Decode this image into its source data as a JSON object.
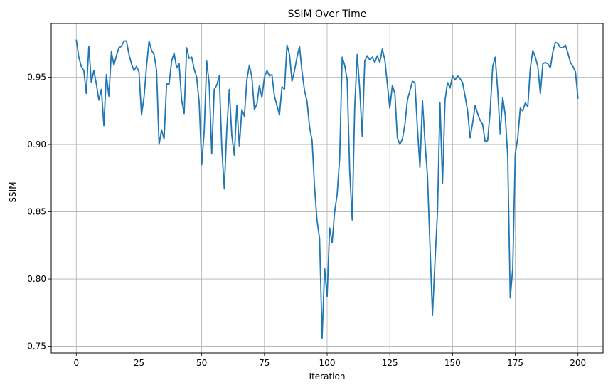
{
  "chart_data": {
    "type": "line",
    "title": "SSIM Over Time",
    "xlabel": "Iteration",
    "ylabel": "SSIM",
    "xlim": [
      -10,
      210
    ],
    "ylim": [
      0.745,
      0.99
    ],
    "grid": true,
    "x_ticks": [
      0,
      25,
      50,
      75,
      100,
      125,
      150,
      175,
      200
    ],
    "y_ticks": [
      0.75,
      0.8,
      0.85,
      0.9,
      0.95
    ],
    "x_tick_labels": [
      "0",
      "25",
      "50",
      "75",
      "100",
      "125",
      "150",
      "175",
      "200"
    ],
    "y_tick_labels": [
      "0.75",
      "0.80",
      "0.85",
      "0.90",
      "0.95"
    ],
    "series": [
      {
        "color": "#1f77b4",
        "x_start": 0,
        "x_step": 1,
        "values": [
          0.978,
          0.965,
          0.958,
          0.955,
          0.938,
          0.973,
          0.946,
          0.955,
          0.945,
          0.933,
          0.941,
          0.914,
          0.952,
          0.936,
          0.969,
          0.959,
          0.966,
          0.972,
          0.973,
          0.977,
          0.977,
          0.967,
          0.96,
          0.955,
          0.958,
          0.954,
          0.922,
          0.935,
          0.958,
          0.977,
          0.97,
          0.967,
          0.955,
          0.9,
          0.911,
          0.904,
          0.945,
          0.945,
          0.962,
          0.968,
          0.957,
          0.96,
          0.933,
          0.923,
          0.972,
          0.964,
          0.965,
          0.956,
          0.95,
          0.931,
          0.885,
          0.91,
          0.962,
          0.945,
          0.893,
          0.941,
          0.944,
          0.951,
          0.898,
          0.867,
          0.911,
          0.941,
          0.907,
          0.892,
          0.929,
          0.899,
          0.926,
          0.921,
          0.948,
          0.959,
          0.95,
          0.926,
          0.93,
          0.944,
          0.935,
          0.95,
          0.955,
          0.951,
          0.952,
          0.936,
          0.929,
          0.922,
          0.943,
          0.941,
          0.974,
          0.967,
          0.947,
          0.955,
          0.965,
          0.973,
          0.954,
          0.94,
          0.932,
          0.913,
          0.903,
          0.868,
          0.843,
          0.83,
          0.756,
          0.808,
          0.787,
          0.838,
          0.827,
          0.85,
          0.863,
          0.89,
          0.965,
          0.959,
          0.948,
          0.88,
          0.844,
          0.928,
          0.967,
          0.941,
          0.906,
          0.962,
          0.966,
          0.963,
          0.965,
          0.961,
          0.966,
          0.961,
          0.971,
          0.963,
          0.945,
          0.927,
          0.944,
          0.938,
          0.905,
          0.9,
          0.904,
          0.915,
          0.933,
          0.94,
          0.947,
          0.946,
          0.912,
          0.883,
          0.933,
          0.902,
          0.877,
          0.825,
          0.773,
          0.813,
          0.85,
          0.931,
          0.871,
          0.933,
          0.946,
          0.942,
          0.951,
          0.948,
          0.951,
          0.949,
          0.946,
          0.936,
          0.925,
          0.905,
          0.916,
          0.929,
          0.923,
          0.918,
          0.915,
          0.902,
          0.903,
          0.925,
          0.958,
          0.965,
          0.94,
          0.908,
          0.935,
          0.922,
          0.891,
          0.786,
          0.808,
          0.893,
          0.905,
          0.927,
          0.925,
          0.931,
          0.928,
          0.957,
          0.97,
          0.965,
          0.958,
          0.938,
          0.96,
          0.961,
          0.96,
          0.957,
          0.969,
          0.976,
          0.975,
          0.972,
          0.972,
          0.974,
          0.968,
          0.961,
          0.958,
          0.954,
          0.934
        ]
      }
    ]
  }
}
